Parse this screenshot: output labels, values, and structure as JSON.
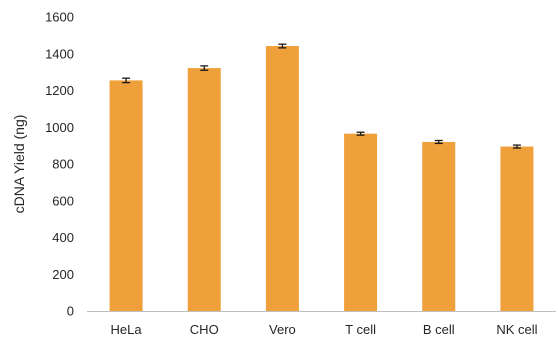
{
  "chart_data": {
    "type": "bar",
    "categories": [
      "HeLa",
      "CHO",
      "Vero",
      "T cell",
      "B cell",
      "NK cell"
    ],
    "values": [
      1255,
      1322,
      1442,
      965,
      920,
      895
    ],
    "error": [
      12,
      12,
      10,
      8,
      8,
      8
    ],
    "ylabel": "cDNA Yield (ng)",
    "xlabel": "",
    "ylim": [
      0,
      1600
    ],
    "yticks": [
      0,
      200,
      400,
      600,
      800,
      1000,
      1200,
      1400,
      1600
    ],
    "grid": false,
    "legend": "none",
    "colors": {
      "bar": "#F0A03A",
      "error": "#1a1a1a",
      "axis": "#bfbfbf",
      "text": "#262626"
    }
  }
}
